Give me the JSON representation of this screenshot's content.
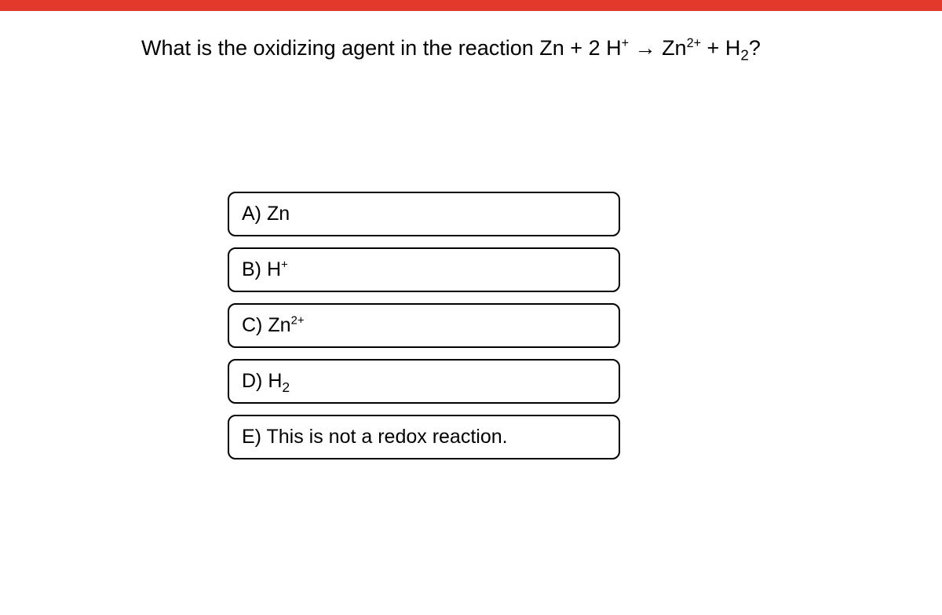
{
  "colors": {
    "top_bar": "#e3392d",
    "background": "#ffffff",
    "text": "#000000",
    "option_border": "#000000"
  },
  "question": {
    "html": "What is the oxidizing agent in the reaction Zn + 2 H<sup>+</sup> &rarr; Zn<sup>2+</sup> + H<sub>2</sub>?"
  },
  "options": [
    {
      "letter": "A",
      "html": "A) Zn"
    },
    {
      "letter": "B",
      "html": "B) H<sup>+</sup>"
    },
    {
      "letter": "C",
      "html": "C) Zn<sup>2+</sup>"
    },
    {
      "letter": "D",
      "html": "D) H<sub>2</sub>"
    },
    {
      "letter": "E",
      "html": "E) This is not a redox reaction."
    }
  ]
}
